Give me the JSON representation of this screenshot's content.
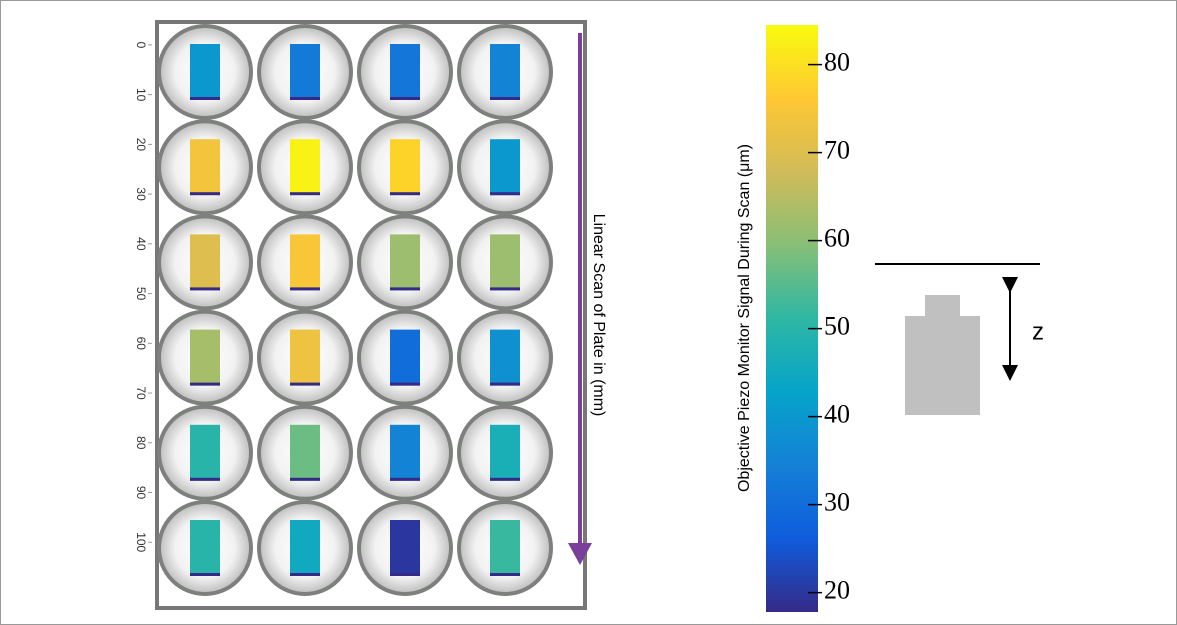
{
  "chart_data": {
    "type": "heatmap",
    "ylabel": "Linear Scan of Plate in (mm)",
    "ylim": [
      -3,
      108
    ],
    "yticks": [
      0,
      10,
      20,
      30,
      40,
      50,
      60,
      70,
      80,
      90,
      100
    ],
    "values": [
      [
        40,
        33,
        32,
        35
      ],
      [
        74,
        83,
        78,
        40
      ],
      [
        70,
        75,
        62,
        62
      ],
      [
        63,
        73,
        30,
        38
      ],
      [
        50,
        57,
        35,
        47
      ],
      [
        50,
        45,
        20,
        52
      ]
    ],
    "colorbar_label": "Objective Piezo Monitor Signal During Scan (μm)",
    "clim": [
      17.8,
      84.5
    ],
    "cticks": [
      20,
      30,
      40,
      50,
      60,
      70,
      80
    ],
    "colors": [
      "#352a87",
      "#0f5cdd",
      "#1481d6",
      "#06a4ca",
      "#2eb7a4",
      "#87bf77",
      "#d1bb59",
      "#fec832",
      "#f9fb0e"
    ],
    "diagram_label": "z"
  }
}
